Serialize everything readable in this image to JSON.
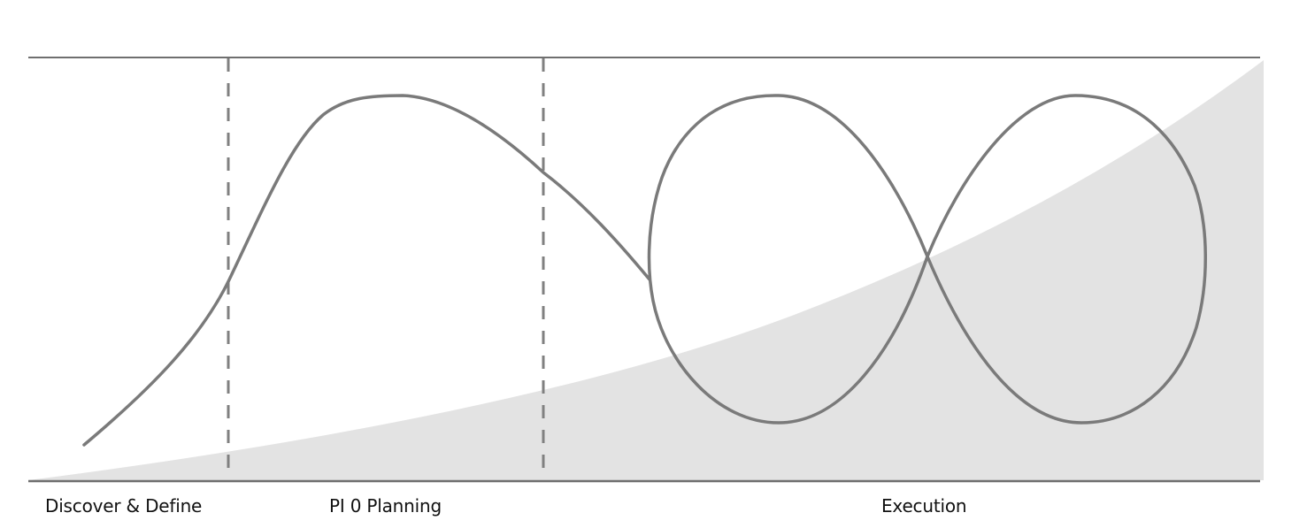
{
  "phases": {
    "discover": "Discover & Define",
    "planning": "PI 0 Planning",
    "execution": "Execution"
  },
  "style": {
    "line_color": "#7a7a7a",
    "area_fill": "#e3e3e3",
    "border_color": "#6f6f6f",
    "divider_color": "#808080"
  }
}
